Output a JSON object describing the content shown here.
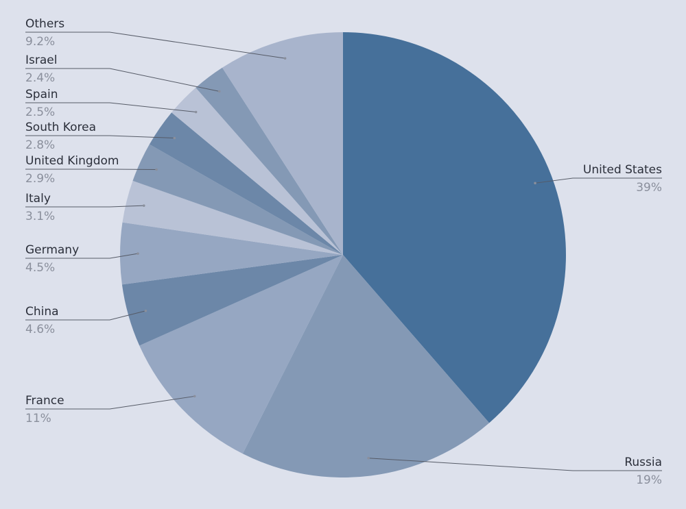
{
  "chart_data": {
    "type": "pie",
    "categories": [
      "United States",
      "Russia",
      "France",
      "China",
      "Germany",
      "Italy",
      "United Kingdom",
      "South Korea",
      "Spain",
      "Israel",
      "Others"
    ],
    "values": [
      39,
      19,
      11,
      4.6,
      4.5,
      3.1,
      2.9,
      2.8,
      2.5,
      2.4,
      9.2
    ],
    "value_labels": [
      "39%",
      "19%",
      "11%",
      "4.6%",
      "4.5%",
      "3.1%",
      "2.9%",
      "2.8%",
      "2.5%",
      "2.4%",
      "9.2%"
    ],
    "colors": [
      "#46709a",
      "#8499b5",
      "#96a7c2",
      "#6c87a8",
      "#96a7c2",
      "#b9c2d6",
      "#8499b5",
      "#6c87a8",
      "#b9c2d6",
      "#8499b5",
      "#a8b4cc"
    ]
  }
}
